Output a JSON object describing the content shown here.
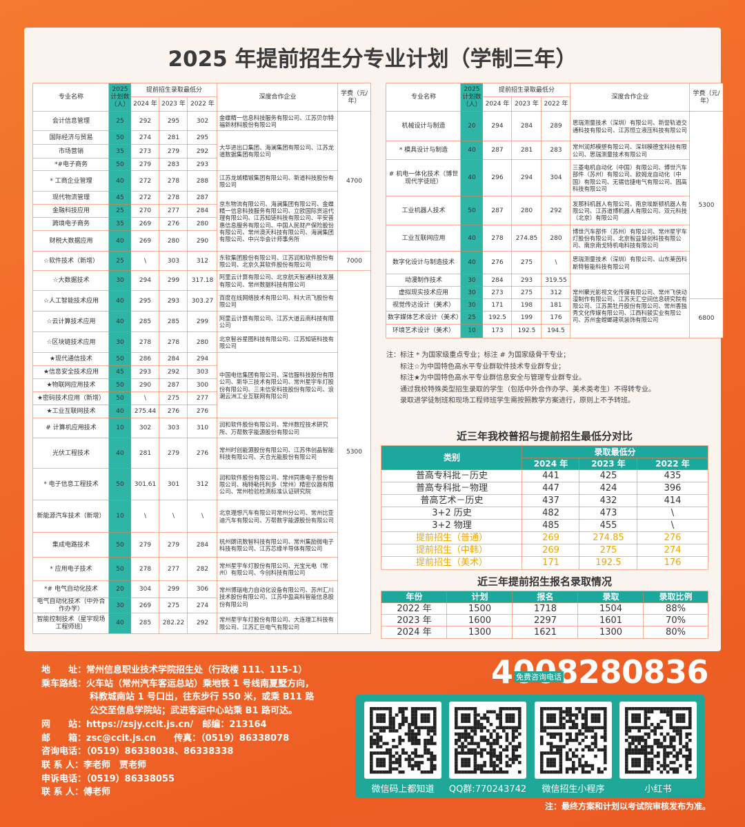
{
  "title": "2025 年提前招生分专业计划（学制三年）",
  "left_table": {
    "headers": {
      "major": "专业名称",
      "plan": "2025计划数（人）",
      "scores": "提前招生录取最低分",
      "years": [
        "2024 年",
        "2023 年",
        "2022 年"
      ],
      "companies": "深度合作企业",
      "tuition": "学费（元/年）"
    },
    "rows": [
      {
        "major": "会计信息管理",
        "plan": 25,
        "scores": [
          292,
          295,
          302
        ]
      },
      {
        "major": "国际经济与贸易",
        "plan": 50,
        "scores": [
          274,
          281,
          295
        ]
      },
      {
        "major": "市场营销",
        "plan": 35,
        "scores": [
          273,
          279,
          292
        ]
      },
      {
        "major": "*#电子商务",
        "plan": 50,
        "scores": [
          279,
          283,
          293
        ]
      },
      {
        "major": "* 工商企业管理",
        "plan": 40,
        "scores": [
          272,
          278,
          288
        ]
      },
      {
        "major": "现代物流管理",
        "plan": 45,
        "scores": [
          272,
          278,
          287
        ]
      },
      {
        "major": "金融科技应用",
        "plan": 25,
        "scores": [
          270,
          277,
          284
        ]
      },
      {
        "major": "跨境电子商务",
        "plan": 35,
        "scores": [
          269,
          276,
          280
        ]
      },
      {
        "major": "财税大数据应用",
        "plan": 40,
        "scores": [
          269,
          280,
          290
        ]
      },
      {
        "major": "☆软件技术（新增）",
        "plan": 25,
        "scores": [
          "\\",
          303,
          312
        ]
      },
      {
        "major": "☆大数据技术",
        "plan": 30,
        "scores": [
          294,
          299,
          317.18
        ]
      },
      {
        "major": "☆人工智能技术应用",
        "plan": 40,
        "scores": [
          295,
          293,
          303.27
        ]
      },
      {
        "major": "☆云计算技术应用",
        "plan": 40,
        "scores": [
          285,
          285,
          299
        ]
      },
      {
        "major": "☆区块链技术应用",
        "plan": 30,
        "scores": [
          278,
          278,
          280
        ]
      },
      {
        "major": "★现代通信技术",
        "plan": 50,
        "scores": [
          286,
          284,
          294
        ]
      },
      {
        "major": "★信息安全技术应用",
        "plan": 45,
        "scores": [
          293,
          292,
          303
        ]
      },
      {
        "major": "★物联网应用技术",
        "plan": 50,
        "scores": [
          290,
          287,
          300
        ]
      },
      {
        "major": "★密码技术应用（新增）",
        "plan": 50,
        "scores": [
          "\\",
          275,
          277
        ]
      },
      {
        "major": "★工业互联网技术",
        "plan": 40,
        "scores": [
          275.44,
          276,
          276
        ]
      },
      {
        "major": "# 计算机应用技术",
        "plan": 10,
        "scores": [
          302,
          303,
          310
        ]
      },
      {
        "major": "光伏工程技术",
        "plan": 40,
        "scores": [
          281,
          279,
          276
        ]
      },
      {
        "major": "* 电子信息工程技术",
        "plan": 50,
        "scores": [
          301.61,
          301,
          312
        ]
      },
      {
        "major": "新能源汽车技术（新增）",
        "plan": 10,
        "scores": [
          "\\",
          "\\",
          "\\"
        ]
      },
      {
        "major": "集成电路技术",
        "plan": 50,
        "scores": [
          279,
          279,
          284
        ]
      },
      {
        "major": "* 应用电子技术",
        "plan": 50,
        "scores": [
          278,
          277,
          282
        ]
      },
      {
        "major": "*# 电气自动化技术",
        "plan": 20,
        "scores": [
          304,
          299,
          306
        ]
      },
      {
        "major": "电气自动化技术（中外合作办学）",
        "plan": 30,
        "scores": [
          269,
          275,
          274
        ]
      },
      {
        "major": "智能控制技术（星宇现场工程师班）",
        "plan": 40,
        "scores": [
          285,
          282.22,
          292
        ]
      }
    ],
    "companies": [
      "金蝶精一信息科技服务有限公司、江苏贝尔特福新材料股份有限公司",
      "大华进出口集团、海澜集团有限公司、江苏龙道数据集团有限公司",
      "江苏龙城精锻集团有限公司、新道科技股份有限公司",
      "京东物流有限公司、海澜集团有限公司、金蝶精一信息科技服务有限公司、立欧国际货运代理有限公司、江苏知链科技有限公司、平安普惠信息服务有限公司、中国人民财产保险股份有限公司、常州澳天科技有限公司、海澜集团有限公司、中兴华会计师事务所",
      "东软集团股份有限公司、江苏润和软件股份有限公司、北京久其软件股份有限公司",
      "阿里云计算有限公司、北京航天智通科技发展有限公司、常州数据科技有限公司",
      "百度在线网络技术有限公司、科大讯飞股份有限公司",
      "阿里云计算有限公司、江苏大道云商科技有限公司",
      "北京智谷星图科技有限公司、江苏知链科技有限公司",
      "中国电信集团有限公司、深信服科技股份有限公司、新华三技术有限公司、常州星宇车灯股份有限公司、三未信安科技股份有限公司、浪潮云洲工业互联网有限公司",
      "润和软件股份有限公司、常州数控技术研究所、万帮数字能源股份有限公司",
      "常州时创能源股份有限公司、江苏伟创晶智能科技有限公司、天合光能股份有限公司",
      "润和软件股份有限公司、常州同惠电子股份有限公司、梅特勒托利多（常州）精密仪器有限公司、常州检验检测标准认证研究院",
      "北京理想汽车有限公司常州分公司、常州比亚迪汽车有限公司、万帮数字能源股份有限公司",
      "杭州朗讯数智科技有限公司、常州集励微电子科技有限公司、江苏芯缘半导体有限公司",
      "常州星宇车灯股份有限公司、光宝光电（常州）有限公司、今创科技有限公司",
      "常州博瑞电力自动化设备有限公司、苏州汇川技术股份有限公司、江苏中盈高科智能信息股份有限公司",
      "常州星宇车灯股份有限公司、大连理工科技有限公司、江苏汇巨电气有限公司"
    ],
    "tuition": [
      4700,
      7000,
      5300
    ]
  },
  "right_table": {
    "headers": {
      "major": "专业名称",
      "plan": "2025计划数（人）",
      "scores": "提前招生录取最低分",
      "years": [
        "2024 年",
        "2023 年",
        "2022 年"
      ],
      "companies": "深度合作企业",
      "tuition": "学费（元/年）"
    },
    "rows": [
      {
        "major": "机械设计与制造",
        "plan": 20,
        "scores": [
          294,
          284,
          289
        ]
      },
      {
        "major": "* 模具设计与制造",
        "plan": 40,
        "scores": [
          287,
          281,
          283
        ]
      },
      {
        "major": "# 机电一体化技术（博世现代学徒班）",
        "plan": 40,
        "scores": [
          296,
          294,
          304
        ]
      },
      {
        "major": "工业机器人技术",
        "plan": 50,
        "scores": [
          287,
          280,
          292
        ]
      },
      {
        "major": "工业互联网应用",
        "plan": 40,
        "scores": [
          278,
          274.85,
          280
        ]
      },
      {
        "major": "数字化设计与制造技术",
        "plan": 40,
        "scores": [
          276,
          275,
          "\\"
        ]
      },
      {
        "major": "动漫制作技术",
        "plan": 30,
        "scores": [
          284,
          293,
          319.55
        ]
      },
      {
        "major": "虚拟现实技术应用",
        "plan": 30,
        "scores": [
          273,
          275,
          312
        ]
      },
      {
        "major": "视觉传达设计（美术）",
        "plan": 30,
        "scores": [
          171,
          198,
          181
        ]
      },
      {
        "major": "数字媒体艺术设计（美术）",
        "plan": 25,
        "scores": [
          192.5,
          199,
          176
        ]
      },
      {
        "major": "环境艺术设计（美术）",
        "plan": 10,
        "scores": [
          173,
          192.5,
          194.5
        ]
      }
    ],
    "companies": [
      "思瑞测量技术（深圳）有限公司、新誉轨道交通科技有限公司、江苏恒立液压科技有限公司",
      "常州润邦模塑有限公司、深圳模德宝科技有限公司、思瑞测量技术有限公司",
      "三菱电机自动化（中国）有限公司、博世汽车部件（苏州）有限公司、欧姆龙自动化（中国）有限公司、无锡信捷电气有限公司、固高科技有限公司",
      "发那科机器人有限公司、南京埃斯顿机器人有限公司、江苏道博机器人有限公司、双元科技（北京）有限公司",
      "博世汽车部件（苏州）有限公司、常州星宇车灯股份有限公司、北京智益慧创科技有限公司、南京南戈特机电科技有限公司",
      "思瑞测量技术（深圳）有限公司、山东莱茵科斯特智能科技有限公司",
      "常州聚光影视文化传媒有限公司、常州飞侠动漫制作有限公司、江苏天汇空间信息研究院有限公司、江苏黑牡丹股份有限公司、常州香独秀文化传媒有限公司、江西科骏实业有限公司、苏州金螳螂建筑装饰有限公司"
    ],
    "tuition": [
      5300,
      6800
    ]
  },
  "notes": [
    "注：标注 * 为国家级重点专业；标注 # 为国家级骨干专业；",
    "标注☆为中国特色高水平专业群软件技术专业群专业；",
    "标注★为中国特色高水平专业群信息安全与管理专业群专业。",
    "通过我校特殊类型招生录取的学生（包括中外合作办学、美术类考生）不得转专业。",
    "录取进学徒制班和现场工程师班学生需按照教学方案进行，原则上不予转班。"
  ],
  "score_comparison": {
    "title": "近三年我校普招与提前招生最低分对比",
    "headers": {
      "category": "类别",
      "scores": "录取最低分",
      "years": [
        "2024 年",
        "2023 年",
        "2022 年"
      ]
    },
    "rows": [
      {
        "category": "普高专科批－历史",
        "scores": [
          441,
          425,
          435
        ]
      },
      {
        "category": "普高专科批－物理",
        "scores": [
          447,
          424,
          396
        ]
      },
      {
        "category": "普高艺术－历史",
        "scores": [
          437,
          432,
          414
        ]
      },
      {
        "category": "3+2 历史",
        "scores": [
          482,
          473,
          "\\"
        ]
      },
      {
        "category": "3+2 物理",
        "scores": [
          485,
          455,
          "\\"
        ]
      },
      {
        "category": "提前招生（普通）",
        "scores": [
          269,
          274.85,
          276
        ]
      },
      {
        "category": "提前招生（中韩）",
        "scores": [
          269,
          275,
          274
        ]
      },
      {
        "category": "提前招生（美术）",
        "scores": [
          171,
          192.5,
          176
        ]
      }
    ]
  },
  "enrollment": {
    "title": "近三年提前招生报名录取情况",
    "headers": [
      "年份",
      "计划",
      "报名",
      "录取",
      "录取比例"
    ],
    "rows": [
      [
        "2022 年",
        1500,
        1718,
        1504,
        "88%"
      ],
      [
        "2023 年",
        1600,
        2297,
        1601,
        "70%"
      ],
      [
        "2024 年",
        1300,
        1621,
        1300,
        "80%"
      ]
    ]
  },
  "contact": [
    "地　　址：常州信息职业技术学院招生处（行政楼 111、115-1）",
    "乘车路线：火车站（常州汽车客运总站）乘地铁 1 号线南夏墅方向，",
    "科教城南站 1 号口出，往东步行 550 米，或乘 B11 路",
    "公交至信息学院站；武进客运中心站乘 B1 路可达。",
    "网　　站：https://zsjy.ccit.js.cn/　邮编：213164",
    "邮　　箱：zsc@ccit.js.cn　　传真：（0519）86338078",
    "咨询电话：（0519）86338038、86338338",
    "联 系 人：李老师　贾老师",
    "申诉电话：（0519）86338055",
    "联 系 人：傅老师"
  ],
  "hotline": {
    "number": "4008280836",
    "label": "免费咨询电话"
  },
  "qr_codes": [
    "微信码上都知道",
    "QQ群:770243742",
    "微信招生小程序",
    "小红书"
  ],
  "footer_note": "注：最终方案和计划以考试院审核发布为准。"
}
